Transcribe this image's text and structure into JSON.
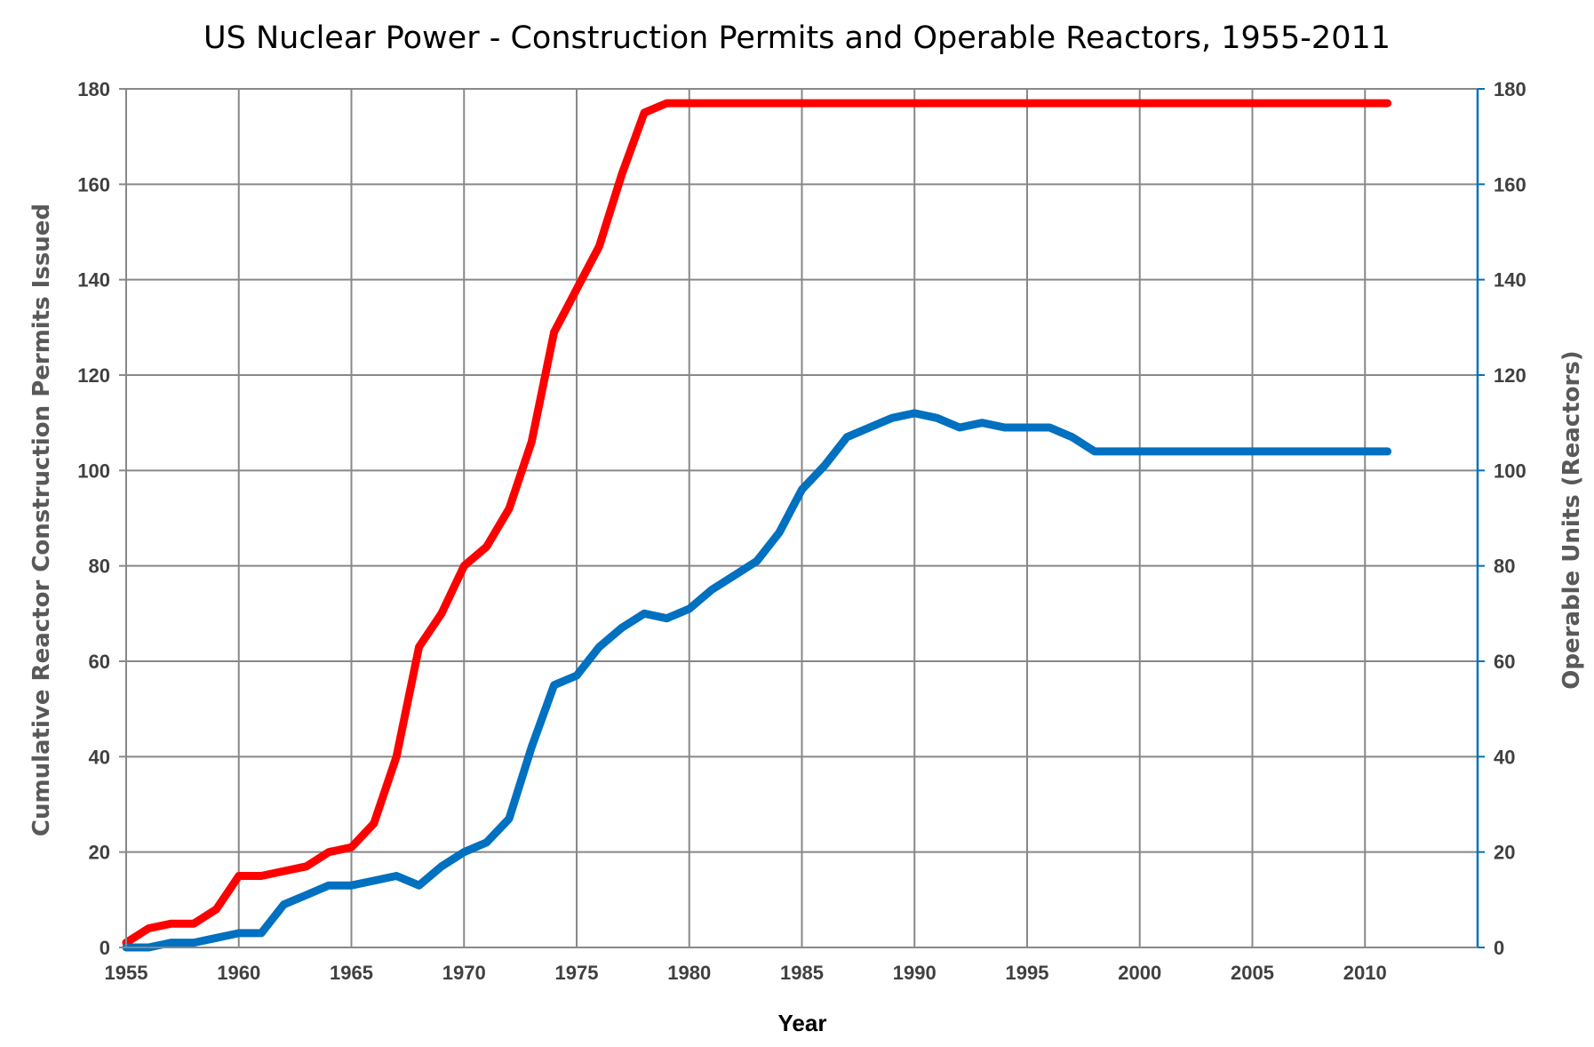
{
  "chart_data": {
    "type": "line",
    "title": "US Nuclear Power - Construction Permits and Operable Reactors, 1955-2011",
    "xlabel": "Year",
    "ylabel": "Cumulative Reactor Construction Permits Issued",
    "ylabel_right": "Operable Units (Reactors)",
    "xlim": [
      1955,
      2015
    ],
    "ylim": [
      0,
      180
    ],
    "ylim_right": [
      0,
      180
    ],
    "x_ticks": [
      1955,
      1960,
      1965,
      1970,
      1975,
      1980,
      1985,
      1990,
      1995,
      2000,
      2005,
      2010
    ],
    "y_ticks": [
      0,
      20,
      40,
      60,
      80,
      100,
      120,
      140,
      160,
      180
    ],
    "y_ticks_right": [
      0,
      20,
      40,
      60,
      80,
      100,
      120,
      140,
      160,
      180
    ],
    "grid": true,
    "series": [
      {
        "name": "",
        "axis": "left",
        "color": "#ff0000",
        "x": [
          1955,
          1956,
          1957,
          1958,
          1959,
          1960,
          1961,
          1962,
          1963,
          1964,
          1965,
          1966,
          1967,
          1968,
          1969,
          1970,
          1971,
          1972,
          1973,
          1974,
          1975,
          1976,
          1977,
          1978,
          1979,
          1980,
          1981,
          1982,
          1983,
          1984,
          1985,
          1986,
          1987,
          1988,
          1989,
          1990,
          1991,
          1992,
          1993,
          1994,
          1995,
          1996,
          1997,
          1998,
          1999,
          2000,
          2001,
          2002,
          2003,
          2004,
          2005,
          2006,
          2007,
          2008,
          2009,
          2010,
          2011
        ],
        "values": [
          1,
          4,
          5,
          5,
          8,
          15,
          15,
          16,
          17,
          20,
          21,
          26,
          40,
          63,
          70,
          80,
          84,
          92,
          106,
          129,
          138,
          147,
          162,
          175,
          177,
          177,
          177,
          177,
          177,
          177,
          177,
          177,
          177,
          177,
          177,
          177,
          177,
          177,
          177,
          177,
          177,
          177,
          177,
          177,
          177,
          177,
          177,
          177,
          177,
          177,
          177,
          177,
          177,
          177,
          177,
          177,
          177
        ]
      },
      {
        "name": "",
        "axis": "right",
        "color": "#0070c0",
        "x": [
          1955,
          1956,
          1957,
          1958,
          1959,
          1960,
          1961,
          1962,
          1963,
          1964,
          1965,
          1966,
          1967,
          1968,
          1969,
          1970,
          1971,
          1972,
          1973,
          1974,
          1975,
          1976,
          1977,
          1978,
          1979,
          1980,
          1981,
          1982,
          1983,
          1984,
          1985,
          1986,
          1987,
          1988,
          1989,
          1990,
          1991,
          1992,
          1993,
          1994,
          1995,
          1996,
          1997,
          1998,
          1999,
          2000,
          2001,
          2002,
          2003,
          2004,
          2005,
          2006,
          2007,
          2008,
          2009,
          2010,
          2011
        ],
        "values": [
          0,
          0,
          1,
          1,
          2,
          3,
          3,
          9,
          11,
          13,
          13,
          14,
          15,
          13,
          17,
          20,
          22,
          27,
          42,
          55,
          57,
          63,
          67,
          70,
          69,
          71,
          75,
          78,
          81,
          87,
          96,
          101,
          107,
          109,
          111,
          112,
          111,
          109,
          110,
          109,
          109,
          109,
          107,
          104,
          104,
          104,
          104,
          104,
          104,
          104,
          104,
          104,
          104,
          104,
          104,
          104,
          104
        ]
      }
    ]
  }
}
